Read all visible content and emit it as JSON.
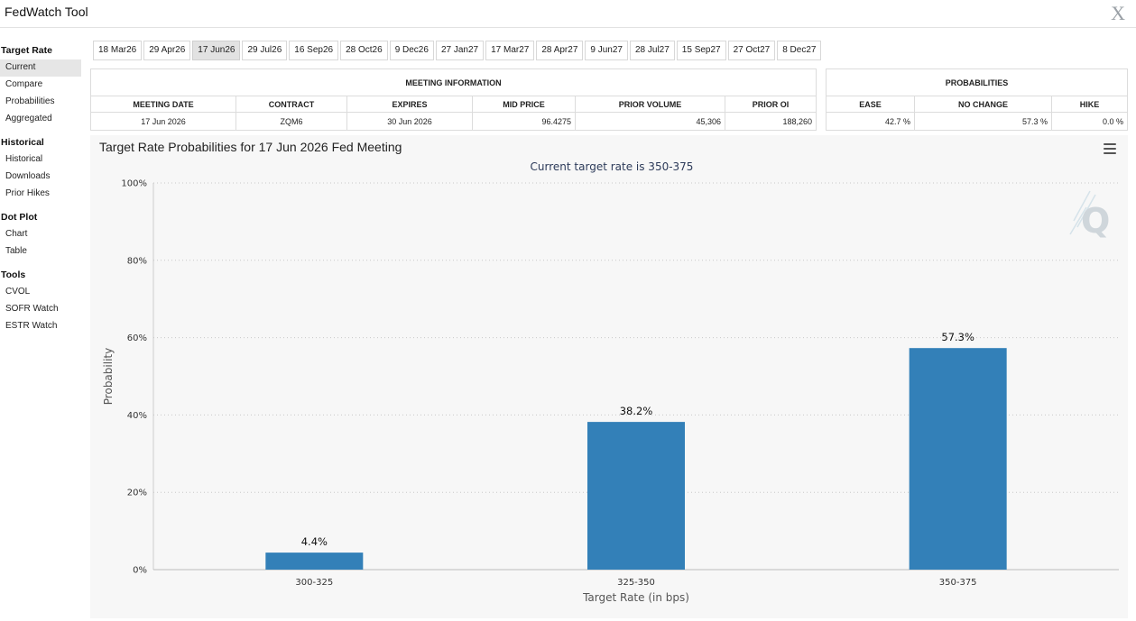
{
  "app": {
    "title": "FedWatch Tool",
    "close_glyph": "X"
  },
  "sidebar": {
    "sections": [
      {
        "heading": "Target Rate",
        "items": [
          "Current",
          "Compare",
          "Probabilities",
          "Aggregated"
        ],
        "active": "Current"
      },
      {
        "heading": "Historical",
        "items": [
          "Historical",
          "Downloads",
          "Prior Hikes"
        ]
      },
      {
        "heading": "Dot Plot",
        "items": [
          "Chart",
          "Table"
        ]
      },
      {
        "heading": "Tools",
        "items": [
          "CVOL",
          "SOFR Watch",
          "ESTR Watch"
        ]
      }
    ]
  },
  "tabs": {
    "items": [
      "18 Mar26",
      "29 Apr26",
      "17 Jun26",
      "29 Jul26",
      "16 Sep26",
      "28 Oct26",
      "9 Dec26",
      "27 Jan27",
      "17 Mar27",
      "28 Apr27",
      "9 Jun27",
      "28 Jul27",
      "15 Sep27",
      "27 Oct27",
      "8 Dec27"
    ],
    "active": "17 Jun26"
  },
  "meeting_info": {
    "title": "MEETING INFORMATION",
    "columns": [
      "MEETING DATE",
      "CONTRACT",
      "EXPIRES",
      "MID PRICE",
      "PRIOR VOLUME",
      "PRIOR OI"
    ],
    "row": [
      "17 Jun 2026",
      "ZQM6",
      "30 Jun 2026",
      "96.4275",
      "45,306",
      "188,260"
    ]
  },
  "probabilities": {
    "title": "PROBABILITIES",
    "columns": [
      "EASE",
      "NO CHANGE",
      "HIKE"
    ],
    "row": [
      "42.7 %",
      "57.3 %",
      "0.0 %"
    ]
  },
  "chart_panel": {
    "menu_icon": "hamburger-menu-icon",
    "watermark_icon": "quikstrike-q-icon"
  },
  "chart_data": {
    "type": "bar",
    "title": "Target Rate Probabilities for 17 Jun 2026 Fed Meeting",
    "subtitle": "Current target rate is 350-375",
    "categories": [
      "300-325",
      "325-350",
      "350-375"
    ],
    "values": [
      4.4,
      38.2,
      57.3
    ],
    "data_labels": [
      "4.4%",
      "38.2%",
      "57.3%"
    ],
    "xlabel": "Target Rate (in bps)",
    "ylabel": "Probability",
    "ylim": [
      0,
      100
    ],
    "yticks": [
      0,
      20,
      40,
      60,
      80,
      100
    ],
    "ytick_labels": [
      "0%",
      "20%",
      "40%",
      "60%",
      "80%",
      "100%"
    ],
    "grid": "horizontal dotted",
    "bar_color": "#3380b8"
  }
}
